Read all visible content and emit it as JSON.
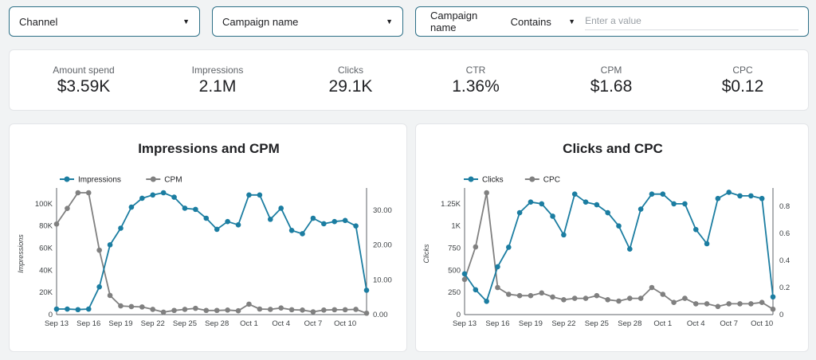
{
  "filters": {
    "channel": {
      "label": "Channel"
    },
    "campaign": {
      "label": "Campaign name"
    },
    "search": {
      "label": "Campaign name",
      "operator": "Contains",
      "placeholder": "Enter a value"
    }
  },
  "kpis": [
    {
      "label": "Amount spend",
      "value": "$3.59K"
    },
    {
      "label": "Impressions",
      "value": "2.1M"
    },
    {
      "label": "Clicks",
      "value": "29.1K"
    },
    {
      "label": "CTR",
      "value": "1.36%"
    },
    {
      "label": "CPM",
      "value": "$1.68"
    },
    {
      "label": "CPC",
      "value": "$0.12"
    }
  ],
  "colors": {
    "primary": "#1b7da1",
    "secondary": "#808080"
  },
  "chart_data": [
    {
      "type": "line",
      "title": "Impressions and CPM",
      "x_tick_labels": [
        "Sep 13",
        "Sep 16",
        "Sep 19",
        "Sep 22",
        "Sep 25",
        "Sep 28",
        "Oct 1",
        "Oct 4",
        "Oct 7",
        "Oct 10"
      ],
      "x_tick_index": [
        0,
        3,
        6,
        9,
        12,
        15,
        18,
        21,
        24,
        27
      ],
      "ylabel": "Impressions",
      "ylim": [
        0,
        110000
      ],
      "y_ticks": [
        0,
        20000,
        40000,
        60000,
        80000,
        100000
      ],
      "y_tick_labels": [
        "0",
        "20K",
        "40K",
        "60K",
        "80K",
        "100K"
      ],
      "y2lim": [
        0,
        35
      ],
      "y2_ticks": [
        0,
        10,
        20,
        30
      ],
      "y2_tick_labels": [
        "0.00",
        "10.00",
        "20.00",
        "30.00"
      ],
      "series": [
        {
          "name": "Impressions",
          "axis": "left",
          "color": "#1b7da1",
          "values": [
            5000,
            5000,
            4500,
            5000,
            25000,
            63000,
            78000,
            97000,
            105000,
            108000,
            110000,
            106000,
            96000,
            95000,
            87000,
            77000,
            84000,
            81000,
            108000,
            108000,
            86000,
            96000,
            76000,
            73000,
            87000,
            82000,
            84000,
            85000,
            80000,
            22000
          ]
        },
        {
          "name": "CPM",
          "axis": "right",
          "color": "#808080",
          "values": [
            26,
            30.5,
            35,
            35,
            18.5,
            5.5,
            2.5,
            2.3,
            2.2,
            1.5,
            0.7,
            1.2,
            1.5,
            1.8,
            1.2,
            1.2,
            1.3,
            1.1,
            3.0,
            1.6,
            1.5,
            1.9,
            1.4,
            1.3,
            0.8,
            1.3,
            1.4,
            1.4,
            1.5,
            0.4
          ]
        }
      ]
    },
    {
      "type": "line",
      "title": "Clicks and CPC",
      "x_tick_labels": [
        "Sep 13",
        "Sep 16",
        "Sep 19",
        "Sep 22",
        "Sep 25",
        "Sep 28",
        "Oct 1",
        "Oct 4",
        "Oct 7",
        "Oct 10"
      ],
      "x_tick_index": [
        0,
        3,
        6,
        9,
        12,
        15,
        18,
        21,
        24,
        27
      ],
      "ylabel": "Clicks",
      "ylim": [
        0,
        1375
      ],
      "y_ticks": [
        0,
        250,
        500,
        750,
        1000,
        1250
      ],
      "y_tick_labels": [
        "0",
        "250",
        "500",
        "750",
        "1K",
        "1.25K"
      ],
      "y2lim": [
        0,
        0.9
      ],
      "y2_ticks": [
        0,
        0.2,
        0.4,
        0.6,
        0.8
      ],
      "y2_tick_labels": [
        "0",
        "0.2",
        "0.4",
        "0.6",
        "0.8"
      ],
      "series": [
        {
          "name": "Clicks",
          "axis": "left",
          "color": "#1b7da1",
          "values": [
            460,
            280,
            150,
            540,
            760,
            1150,
            1270,
            1250,
            1110,
            900,
            1360,
            1270,
            1240,
            1150,
            1000,
            740,
            1190,
            1360,
            1360,
            1250,
            1250,
            960,
            800,
            1310,
            1380,
            1340,
            1340,
            1310,
            200
          ]
        },
        {
          "name": "CPC",
          "axis": "right",
          "color": "#808080",
          "values": [
            0.26,
            0.5,
            0.9,
            0.2,
            0.15,
            0.14,
            0.14,
            0.16,
            0.13,
            0.11,
            0.12,
            0.12,
            0.14,
            0.11,
            0.1,
            0.12,
            0.12,
            0.2,
            0.15,
            0.09,
            0.12,
            0.08,
            0.08,
            0.06,
            0.08,
            0.08,
            0.08,
            0.09,
            0.04
          ]
        }
      ]
    }
  ]
}
